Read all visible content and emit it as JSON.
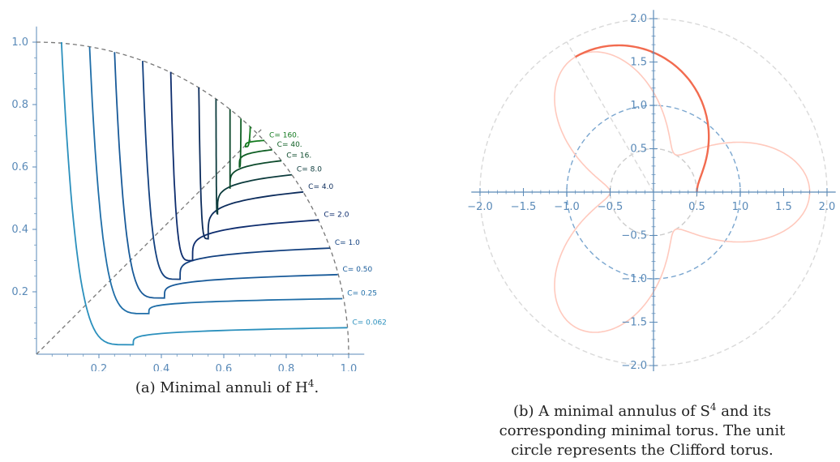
{
  "chart_data": [
    {
      "type": "line",
      "panel": "a",
      "caption_prefix": "(a) Minimal annuli of H",
      "caption_sup": "4",
      "caption_suffix": ".",
      "xlim": [
        0,
        1.05
      ],
      "ylim": [
        0,
        1.05
      ],
      "xticks": [
        "0.2",
        "0.4",
        "0.6",
        "0.8",
        "1.0"
      ],
      "yticks": [
        "0.2",
        "0.4",
        "0.6",
        "0.8",
        "1.0"
      ],
      "boundary": "quarter unit circle (dashed)",
      "diagonal": "y = x (dashed)",
      "series": [
        {
          "name": "C= 0.062",
          "color": "#2b90bd",
          "bend": [
            0.31,
            0.03
          ],
          "start": [
            0.08,
            1.0
          ],
          "end": [
            0.996,
            0.085
          ]
        },
        {
          "name": "C= 0.25",
          "color": "#1f6ea8",
          "bend": [
            0.36,
            0.13
          ],
          "start": [
            0.17,
            0.985
          ],
          "end": [
            0.98,
            0.178
          ]
        },
        {
          "name": "C= 0.50",
          "color": "#185a99",
          "bend": [
            0.41,
            0.18
          ],
          "start": [
            0.25,
            0.968
          ],
          "end": [
            0.965,
            0.255
          ]
        },
        {
          "name": "C= 1.0",
          "color": "#12407f",
          "bend": [
            0.46,
            0.24
          ],
          "start": [
            0.34,
            0.94
          ],
          "end": [
            0.94,
            0.34
          ]
        },
        {
          "name": "C= 2.0",
          "color": "#0e2d6e",
          "bend": [
            0.5,
            0.3
          ],
          "start": [
            0.43,
            0.905
          ],
          "end": [
            0.905,
            0.43
          ]
        },
        {
          "name": "C= 4.0",
          "color": "#0c2c5c",
          "bend": [
            0.55,
            0.37
          ],
          "start": [
            0.52,
            0.855
          ],
          "end": [
            0.855,
            0.52
          ]
        },
        {
          "name": "C= 8.0",
          "color": "#0c3b3c",
          "bend": [
            0.58,
            0.45
          ],
          "start": [
            0.575,
            0.818
          ],
          "end": [
            0.818,
            0.575
          ]
        },
        {
          "name": "C= 16.",
          "color": "#0d4a2c",
          "bend": [
            0.62,
            0.53
          ],
          "start": [
            0.62,
            0.785
          ],
          "end": [
            0.785,
            0.62
          ]
        },
        {
          "name": "C= 40.",
          "color": "#0f5f24",
          "bend": [
            0.65,
            0.6
          ],
          "start": [
            0.655,
            0.755
          ],
          "end": [
            0.755,
            0.655
          ]
        },
        {
          "name": "C= 160.",
          "color": "#137a1f",
          "bend": [
            0.67,
            0.665
          ],
          "start": [
            0.685,
            0.73
          ],
          "end": [
            0.73,
            0.685
          ]
        }
      ]
    },
    {
      "type": "line",
      "panel": "b",
      "caption_prefix": "(b) A minimal annulus of S",
      "caption_sup": "4",
      "caption_rest": " and its",
      "caption_line2": "corresponding minimal torus. The unit",
      "caption_line3": "circle represents the Clifford torus.",
      "xlim": [
        -2.1,
        2.1
      ],
      "ylim": [
        -2.1,
        2.1
      ],
      "xticks": [
        "−2.0",
        "−1.5",
        "−1.0",
        "−0.5",
        "0.5",
        "1.0",
        "1.5",
        "2.0"
      ],
      "yticks": [
        "2.0",
        "1.5",
        "1.0",
        "0.5",
        "−0.5",
        "−1.0",
        "−1.5",
        "−2.0"
      ],
      "reference_circles": [
        {
          "radius": 0.5,
          "color": "#cccccc",
          "style": "dashed"
        },
        {
          "radius": 1.0,
          "color": "#7aa6cf",
          "style": "dashed"
        },
        {
          "radius": 2.0,
          "color": "#d9d9d9",
          "style": "dashed"
        }
      ],
      "rays": [
        {
          "angle_deg": 120,
          "from_r": 0.0,
          "to_r": 2.0,
          "color": "#d9d9d9"
        }
      ],
      "torus_curve": {
        "type": "polar",
        "r_min": 0.5,
        "r_max": 1.8,
        "lobes": 3,
        "color": "#ffc9bd",
        "highlight_color": "#f26b4f",
        "highlight_range_deg": [
          0,
          120
        ]
      }
    }
  ]
}
